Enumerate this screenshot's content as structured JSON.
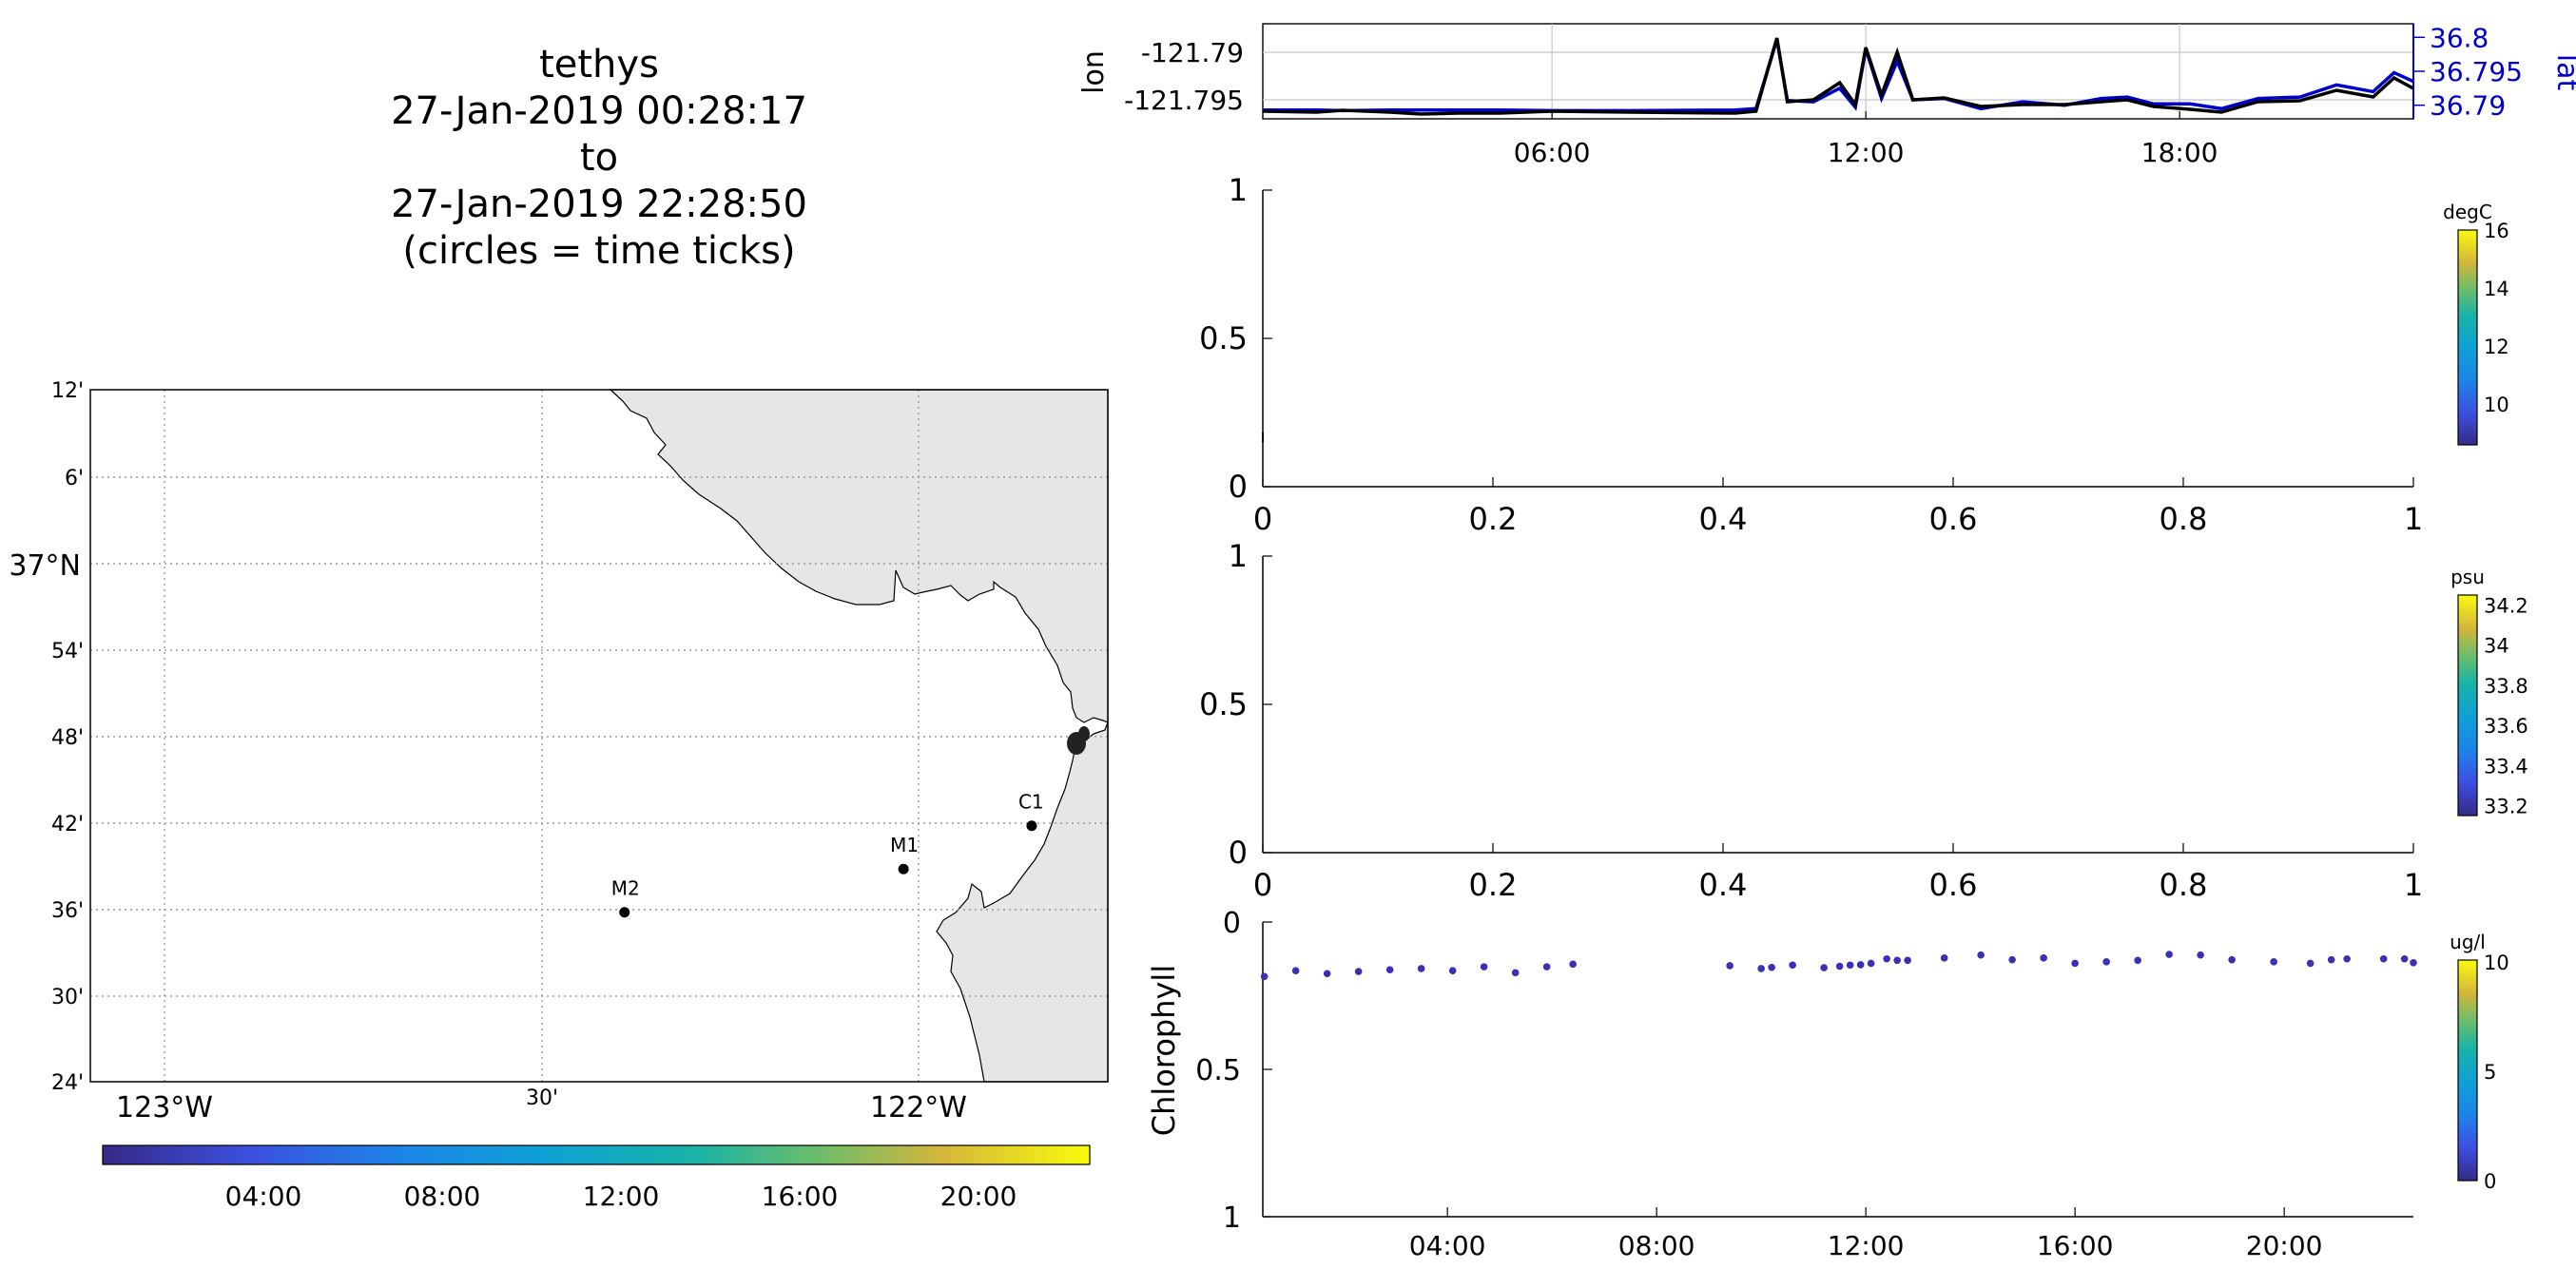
{
  "title": {
    "platform": "tethys",
    "start": "27-Jan-2019 00:28:17",
    "to": "to",
    "end": "27-Jan-2019 22:28:50",
    "note": "(circles = time ticks)"
  },
  "colors": {
    "land": "#e6e6e6",
    "grid": "#b0b0b0",
    "lon_line": "#000000",
    "lat_line": "#0000cc",
    "lat_axis": "#0000cc",
    "points": "#3b2fb5"
  },
  "map": {
    "lat_ticks": [
      "12'",
      "6'",
      "37°N",
      "54'",
      "48'",
      "42'",
      "36'",
      "30'",
      "24'"
    ],
    "lon_ticks": [
      "123°W",
      "30'",
      "122°W"
    ],
    "stations": [
      {
        "name": "C1",
        "lon": -121.85,
        "lat": 36.797
      },
      {
        "name": "M1",
        "lon": -122.02,
        "lat": 36.747
      },
      {
        "name": "M2",
        "lon": -122.39,
        "lat": 36.697
      }
    ],
    "colorbar_ticks": [
      "04:00",
      "08:00",
      "12:00",
      "16:00",
      "20:00"
    ]
  },
  "chart_data": [
    {
      "type": "line",
      "name": "position",
      "ylabel": "lon",
      "ylabel_right": "lat",
      "x_ticks": [
        "06:00",
        "12:00",
        "18:00"
      ],
      "y_ticks_left": [
        "-121.79",
        "-121.795"
      ],
      "y_ticks_right": [
        "36.8",
        "36.795",
        "36.79"
      ],
      "ylim_left": [
        -121.797,
        -121.787
      ],
      "ylim_right": [
        36.788,
        36.802
      ],
      "grid": true,
      "series": [
        {
          "name": "lon",
          "x": [
            0.47,
            1.5,
            2.0,
            2.9,
            3.5,
            4.2,
            5.0,
            6.0,
            7.5,
            9.5,
            9.9,
            10.3,
            10.5,
            11.0,
            11.5,
            11.8,
            12.0,
            12.3,
            12.6,
            12.9,
            13.5,
            14.2,
            15.0,
            15.8,
            16.5,
            17.0,
            17.5,
            18.2,
            18.8,
            19.5,
            20.3,
            21.0,
            21.7,
            22.1,
            22.47
          ],
          "y": [
            -121.7962,
            -121.7963,
            -121.7961,
            -121.7963,
            -121.7965,
            -121.7964,
            -121.7964,
            -121.7962,
            -121.7963,
            -121.7964,
            -121.7962,
            -121.7885,
            -121.7952,
            -121.795,
            -121.7932,
            -121.7955,
            -121.7895,
            -121.7945,
            -121.79,
            -121.795,
            -121.7948,
            -121.7957,
            -121.7955,
            -121.7955,
            -121.7952,
            -121.795,
            -121.7957,
            -121.796,
            -121.7963,
            -121.7952,
            -121.7951,
            -121.794,
            -121.7947,
            -121.7927,
            -121.7938
          ]
        },
        {
          "name": "lat",
          "x": [
            0.47,
            1.5,
            2.0,
            2.9,
            3.5,
            4.2,
            5.0,
            6.0,
            7.5,
            9.5,
            9.9,
            10.3,
            10.5,
            11.0,
            11.5,
            11.8,
            12.0,
            12.3,
            12.6,
            12.9,
            13.5,
            14.2,
            15.0,
            15.8,
            16.5,
            17.0,
            17.5,
            18.2,
            18.8,
            19.5,
            20.3,
            21.0,
            21.7,
            22.1,
            22.47
          ],
          "y": [
            36.7893,
            36.7893,
            36.7892,
            36.7893,
            36.7893,
            36.7893,
            36.7893,
            36.7892,
            36.7892,
            36.7893,
            36.7895,
            36.7997,
            36.7907,
            36.7905,
            36.7925,
            36.7897,
            36.7983,
            36.791,
            36.7965,
            36.7908,
            36.791,
            36.7895,
            36.7905,
            36.79,
            36.791,
            36.7912,
            36.7902,
            36.7902,
            36.7895,
            36.791,
            36.7912,
            36.793,
            36.792,
            36.7948,
            36.7935
          ]
        }
      ]
    },
    {
      "type": "scatter",
      "name": "temperature",
      "ylabel": "",
      "xlim": [
        0,
        1
      ],
      "ylim": [
        0,
        1
      ],
      "x_ticks": [
        "0",
        "0.2",
        "0.4",
        "0.6",
        "0.8",
        "1"
      ],
      "y_ticks": [
        "1",
        "0.5",
        "0"
      ],
      "colorbar_unit": "degC",
      "colorbar_ticks": [
        "16",
        "14",
        "12",
        "10"
      ],
      "series": []
    },
    {
      "type": "scatter",
      "name": "salinity",
      "ylabel": "",
      "xlim": [
        0,
        1
      ],
      "ylim": [
        0,
        1
      ],
      "x_ticks": [
        "0",
        "0.2",
        "0.4",
        "0.6",
        "0.8",
        "1"
      ],
      "y_ticks": [
        "1",
        "0.5",
        "0"
      ],
      "colorbar_unit": "psu",
      "colorbar_ticks": [
        "34.2",
        "34",
        "33.8",
        "33.6",
        "33.4",
        "33.2"
      ],
      "series": []
    },
    {
      "type": "scatter",
      "name": "chlorophyll",
      "ylabel": "Chlorophyll",
      "xlim": [
        0.47,
        22.47
      ],
      "ylim": [
        0,
        1
      ],
      "y_reversed": true,
      "x_ticks": [
        "04:00",
        "08:00",
        "12:00",
        "16:00",
        "20:00"
      ],
      "y_ticks": [
        "0",
        "0.5",
        "1"
      ],
      "colorbar_unit": "ug/l",
      "colorbar_ticks": [
        "10",
        "5",
        "0"
      ],
      "series": [
        {
          "x": [
            0.5,
            1.1,
            1.7,
            2.3,
            2.9,
            3.5,
            4.1,
            4.7,
            5.3,
            5.9,
            6.4,
            9.4,
            10.0,
            10.2,
            10.6,
            11.2,
            11.5,
            11.7,
            11.9,
            12.1,
            12.4,
            12.6,
            12.8,
            13.5,
            14.2,
            14.8,
            15.4,
            16.0,
            16.6,
            17.2,
            17.8,
            18.4,
            19.0,
            19.8,
            20.5,
            20.9,
            21.2,
            21.9,
            22.3,
            22.47
          ],
          "y": [
            0.185,
            0.165,
            0.175,
            0.168,
            0.162,
            0.158,
            0.165,
            0.152,
            0.172,
            0.152,
            0.143,
            0.148,
            0.158,
            0.154,
            0.146,
            0.155,
            0.15,
            0.146,
            0.145,
            0.14,
            0.125,
            0.13,
            0.13,
            0.122,
            0.112,
            0.128,
            0.122,
            0.14,
            0.135,
            0.13,
            0.11,
            0.112,
            0.128,
            0.135,
            0.14,
            0.128,
            0.125,
            0.125,
            0.125,
            0.138
          ]
        }
      ]
    }
  ]
}
